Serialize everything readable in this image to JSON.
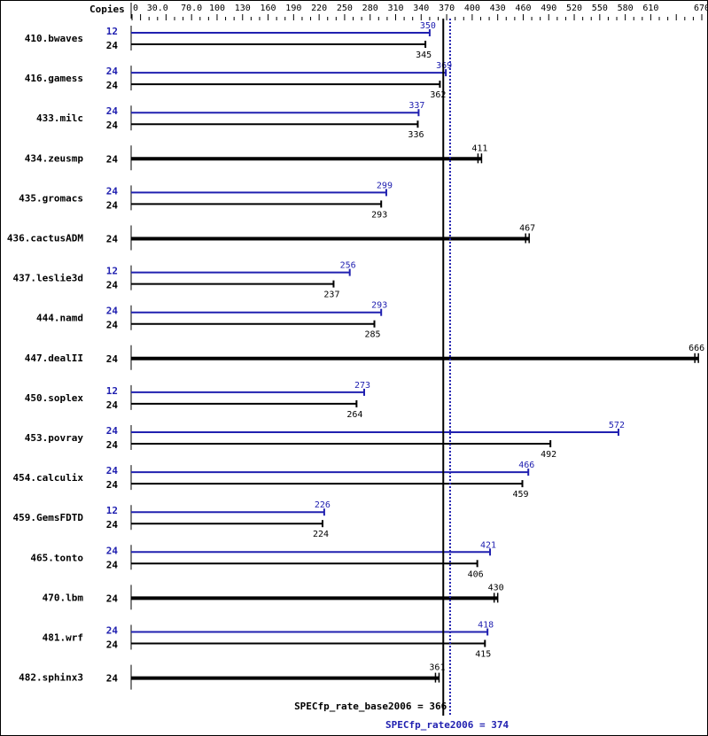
{
  "chart_data": {
    "type": "bar",
    "orientation": "horizontal",
    "header_label": "Copies",
    "xlim": [
      0,
      670
    ],
    "x_tick_labels": [
      "0",
      "30.0",
      "70.0",
      "100",
      "130",
      "160",
      "190",
      "220",
      "250",
      "280",
      "310",
      "340",
      "370",
      "400",
      "430",
      "460",
      "490",
      "520",
      "550",
      "580",
      "610",
      "670"
    ],
    "colors": {
      "base": "#000000",
      "peak": "#2020b0"
    },
    "benchmarks": [
      {
        "name": "410.bwaves",
        "peak_copies": "12",
        "peak": 350,
        "base_copies": "24",
        "base": 345
      },
      {
        "name": "416.gamess",
        "peak_copies": "24",
        "peak": 369,
        "base_copies": "24",
        "base": 362
      },
      {
        "name": "433.milc",
        "peak_copies": "24",
        "peak": 337,
        "base_copies": "24",
        "base": 336
      },
      {
        "name": "434.zeusmp",
        "base_copies": "24",
        "base": 411
      },
      {
        "name": "435.gromacs",
        "peak_copies": "24",
        "peak": 299,
        "base_copies": "24",
        "base": 293
      },
      {
        "name": "436.cactusADM",
        "base_copies": "24",
        "base": 467
      },
      {
        "name": "437.leslie3d",
        "peak_copies": "12",
        "peak": 256,
        "base_copies": "24",
        "base": 237
      },
      {
        "name": "444.namd",
        "peak_copies": "24",
        "peak": 293,
        "base_copies": "24",
        "base": 285
      },
      {
        "name": "447.dealII",
        "base_copies": "24",
        "base": 666
      },
      {
        "name": "450.soplex",
        "peak_copies": "12",
        "peak": 273,
        "base_copies": "24",
        "base": 264
      },
      {
        "name": "453.povray",
        "peak_copies": "24",
        "peak": 572,
        "base_copies": "24",
        "base": 492
      },
      {
        "name": "454.calculix",
        "peak_copies": "24",
        "peak": 466,
        "base_copies": "24",
        "base": 459
      },
      {
        "name": "459.GemsFDTD",
        "peak_copies": "12",
        "peak": 226,
        "base_copies": "24",
        "base": 224
      },
      {
        "name": "465.tonto",
        "peak_copies": "24",
        "peak": 421,
        "base_copies": "24",
        "base": 406
      },
      {
        "name": "470.lbm",
        "base_copies": "24",
        "base": 430
      },
      {
        "name": "481.wrf",
        "peak_copies": "24",
        "peak": 418,
        "base_copies": "24",
        "base": 415
      },
      {
        "name": "482.sphinx3",
        "base_copies": "24",
        "base": 361
      }
    ],
    "base_mean": {
      "label": "SPECfp_rate_base2006 = 366",
      "value": 366
    },
    "peak_mean": {
      "label": "SPECfp_rate2006 = 374",
      "value": 374
    }
  }
}
